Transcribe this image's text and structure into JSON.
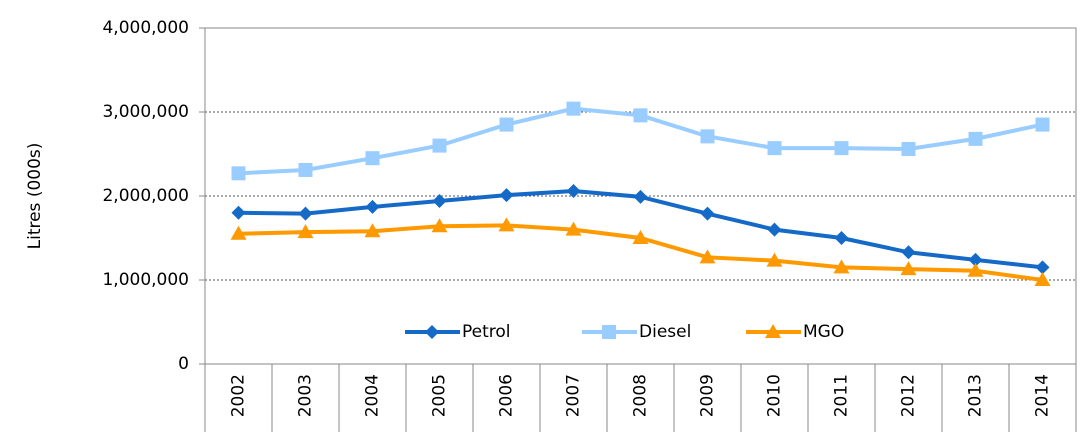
{
  "chart_data": {
    "type": "line",
    "y_axis_label": "Litres (000s)",
    "categories": [
      "2002",
      "2003",
      "2004",
      "2005",
      "2006",
      "2007",
      "2008",
      "2009",
      "2010",
      "2011",
      "2012",
      "2013",
      "2014"
    ],
    "series": [
      {
        "name": "Petrol",
        "color": "#1569c7",
        "marker": "diamond",
        "values": [
          1800000,
          1790000,
          1870000,
          1940000,
          2010000,
          2060000,
          1990000,
          1790000,
          1600000,
          1500000,
          1330000,
          1240000,
          1150000
        ]
      },
      {
        "name": "Diesel",
        "color": "#99ccff",
        "marker": "square",
        "values": [
          2270000,
          2310000,
          2450000,
          2600000,
          2850000,
          3040000,
          2960000,
          2710000,
          2570000,
          2570000,
          2560000,
          2680000,
          2850000
        ]
      },
      {
        "name": "MGO",
        "color": "#ff9900",
        "marker": "triangle",
        "values": [
          1550000,
          1570000,
          1580000,
          1640000,
          1650000,
          1600000,
          1500000,
          1270000,
          1230000,
          1150000,
          1130000,
          1110000,
          1000000
        ]
      }
    ],
    "ylim": [
      0,
      4000000
    ],
    "yticks": [
      0,
      {
        "value": 1000000,
        "label": "1,000,000"
      },
      {
        "value": 2000000,
        "label": "2,000,000"
      },
      {
        "value": 3000000,
        "label": "3,000,000"
      },
      {
        "value": 4000000,
        "label": "4,000,000"
      }
    ],
    "grid": true,
    "legend": "bottom"
  }
}
